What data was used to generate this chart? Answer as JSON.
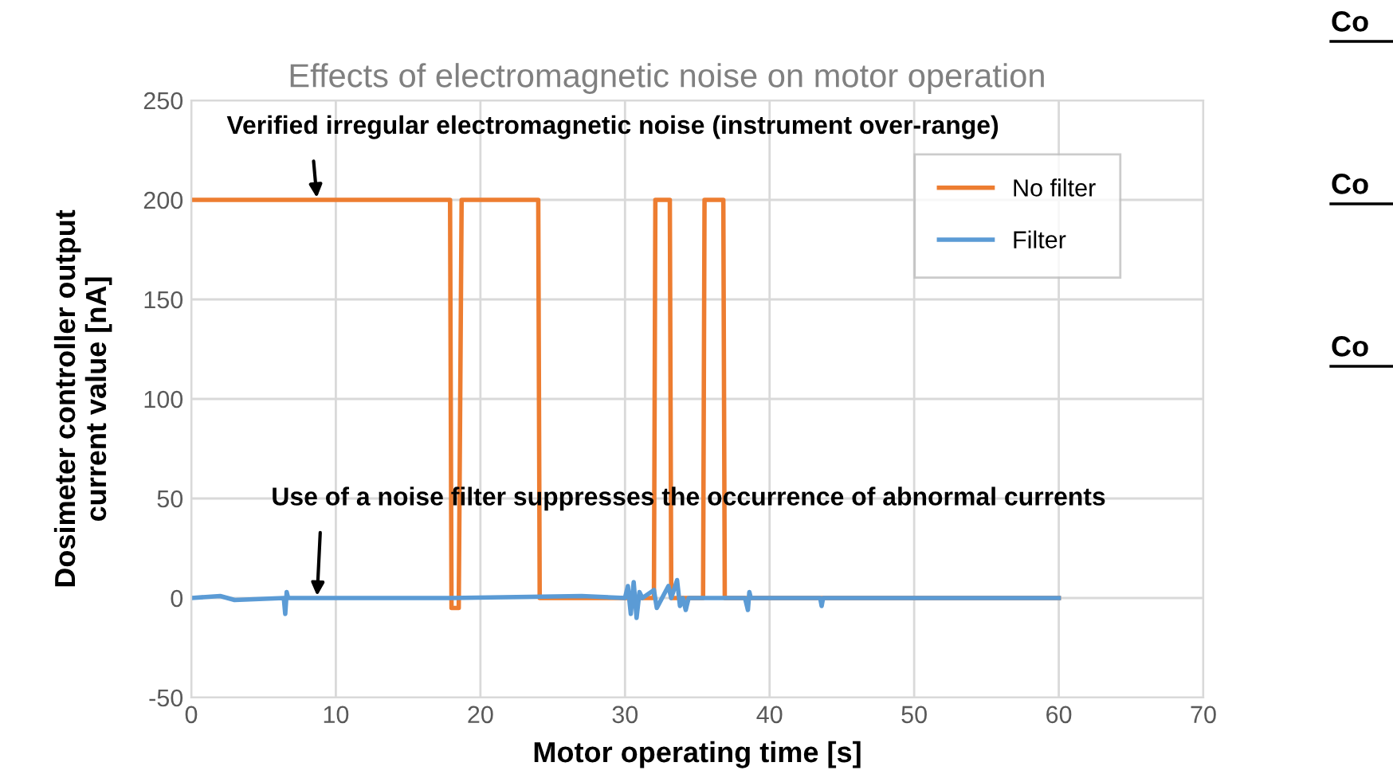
{
  "chart_data": {
    "type": "line",
    "title": "Effects of electromagnetic noise on motor operation",
    "xlabel": "Motor operating time [s]",
    "ylabel": "Dosimeter controller output\ncurrent value [nA]",
    "xlim": [
      0,
      70
    ],
    "xticks": [
      0,
      10,
      20,
      30,
      40,
      50,
      60,
      70
    ],
    "ylim": [
      -50,
      250
    ],
    "yticks": [
      -50,
      0,
      50,
      100,
      150,
      200,
      250
    ],
    "grid": true,
    "legend": "top right",
    "marker": "none",
    "line_style": "solid",
    "series": [
      {
        "name": "No filter",
        "color": "#ed7d31",
        "x": [
          0,
          17.9,
          18.0,
          18.5,
          18.7,
          24.0,
          24.1,
          32.0,
          32.1,
          33.1,
          33.2,
          33.3,
          33.4,
          35.4,
          35.5,
          36.8,
          36.9,
          60
        ],
        "values": [
          200,
          200,
          -5,
          -5,
          200,
          200,
          0,
          0,
          200,
          200,
          0,
          0,
          0,
          0,
          200,
          200,
          0,
          0
        ]
      },
      {
        "name": "Filter",
        "color": "#5b9bd5",
        "x": [
          0,
          2,
          3,
          6.4,
          6.5,
          6.6,
          6.7,
          18,
          27,
          30,
          30.2,
          30.4,
          30.6,
          30.8,
          31,
          31.2,
          32,
          32.2,
          33,
          33.2,
          33.6,
          33.8,
          34,
          34.2,
          34.4,
          38.3,
          38.5,
          38.6,
          38.7,
          43.5,
          43.6,
          43.7,
          60
        ],
        "values": [
          0,
          1,
          -1,
          0,
          -8,
          3,
          0,
          0,
          1,
          0,
          6,
          -8,
          8,
          -10,
          3,
          0,
          4,
          -5,
          6,
          0,
          9,
          -4,
          0,
          -6,
          0,
          0,
          -6,
          3,
          0,
          0,
          -4,
          0,
          0
        ]
      }
    ],
    "annotations": [
      {
        "text": "Verified irregular electromagnetic noise (instrument over-range)",
        "x": 8.7,
        "y": 200
      },
      {
        "text": "Use of a noise filter suppresses the occurrence of abnormal currents",
        "x": 8.7,
        "y": 0
      },
      "Co",
      "Co",
      "Co"
    ]
  }
}
